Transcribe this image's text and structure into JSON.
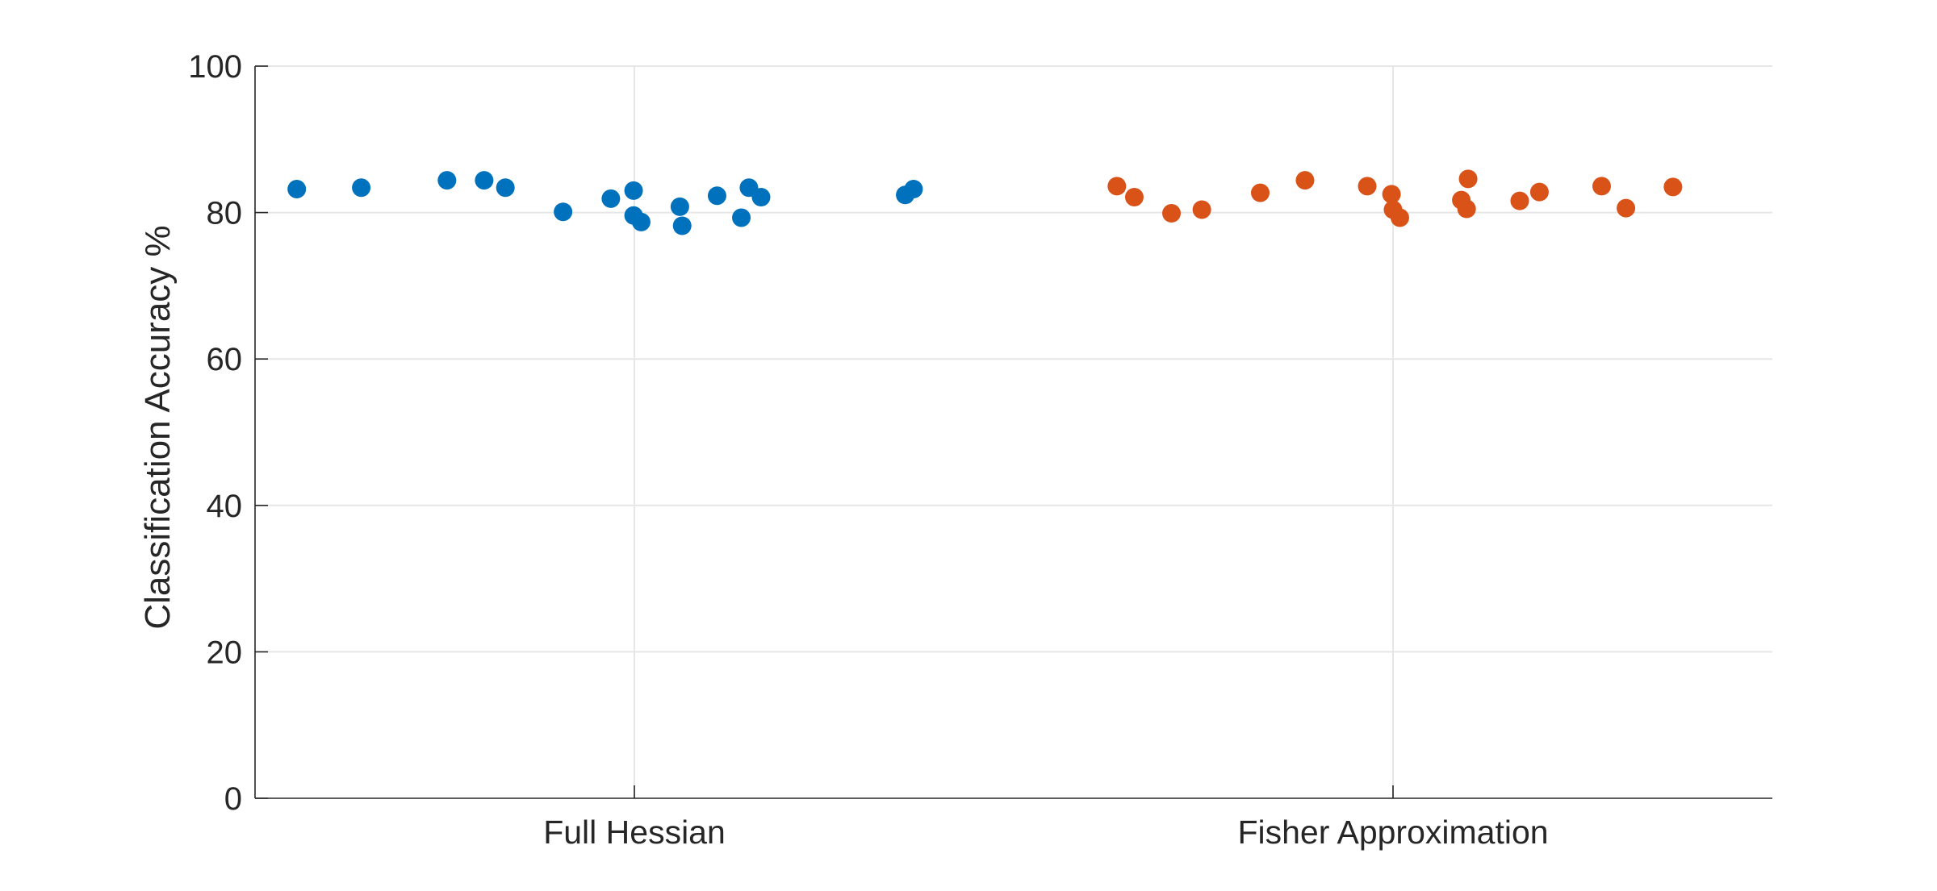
{
  "chart_data": {
    "type": "scatter",
    "title": "",
    "xlabel": "",
    "ylabel": "Classification Accuracy %",
    "ylim": [
      0,
      100
    ],
    "yticks": [
      0,
      20,
      40,
      60,
      80,
      100
    ],
    "categories": [
      "Full Hessian",
      "Fisher Approximation"
    ],
    "xlim": [
      0.5,
      2.5
    ],
    "grid": true,
    "legend": "none",
    "series": [
      {
        "color": "#0072BD",
        "points": [
          {
            "x": 0.555,
            "y": 83.2
          },
          {
            "x": 0.64,
            "y": 83.4
          },
          {
            "x": 0.753,
            "y": 84.4
          },
          {
            "x": 0.802,
            "y": 84.4
          },
          {
            "x": 0.83,
            "y": 83.4
          },
          {
            "x": 0.906,
            "y": 80.1
          },
          {
            "x": 0.969,
            "y": 81.9
          },
          {
            "x": 0.999,
            "y": 83.0
          },
          {
            "x": 0.999,
            "y": 79.6
          },
          {
            "x": 1.009,
            "y": 78.7
          },
          {
            "x": 1.06,
            "y": 80.8
          },
          {
            "x": 1.063,
            "y": 78.2
          },
          {
            "x": 1.109,
            "y": 82.3
          },
          {
            "x": 1.141,
            "y": 79.3
          },
          {
            "x": 1.151,
            "y": 83.4
          },
          {
            "x": 1.167,
            "y": 82.1
          },
          {
            "x": 1.357,
            "y": 82.4
          },
          {
            "x": 1.368,
            "y": 83.2
          }
        ]
      },
      {
        "color": "#D95319",
        "points": [
          {
            "x": 1.636,
            "y": 83.6
          },
          {
            "x": 1.659,
            "y": 82.1
          },
          {
            "x": 1.708,
            "y": 79.9
          },
          {
            "x": 1.748,
            "y": 80.4
          },
          {
            "x": 1.825,
            "y": 82.7
          },
          {
            "x": 1.884,
            "y": 84.4
          },
          {
            "x": 1.966,
            "y": 83.6
          },
          {
            "x": 1.998,
            "y": 82.5
          },
          {
            "x": 2.0,
            "y": 80.4
          },
          {
            "x": 2.009,
            "y": 79.3
          },
          {
            "x": 2.09,
            "y": 81.7
          },
          {
            "x": 2.097,
            "y": 80.5
          },
          {
            "x": 2.099,
            "y": 84.6
          },
          {
            "x": 2.167,
            "y": 81.6
          },
          {
            "x": 2.193,
            "y": 82.8
          },
          {
            "x": 2.275,
            "y": 83.6
          },
          {
            "x": 2.307,
            "y": 80.6
          },
          {
            "x": 2.369,
            "y": 83.5
          }
        ]
      }
    ]
  }
}
